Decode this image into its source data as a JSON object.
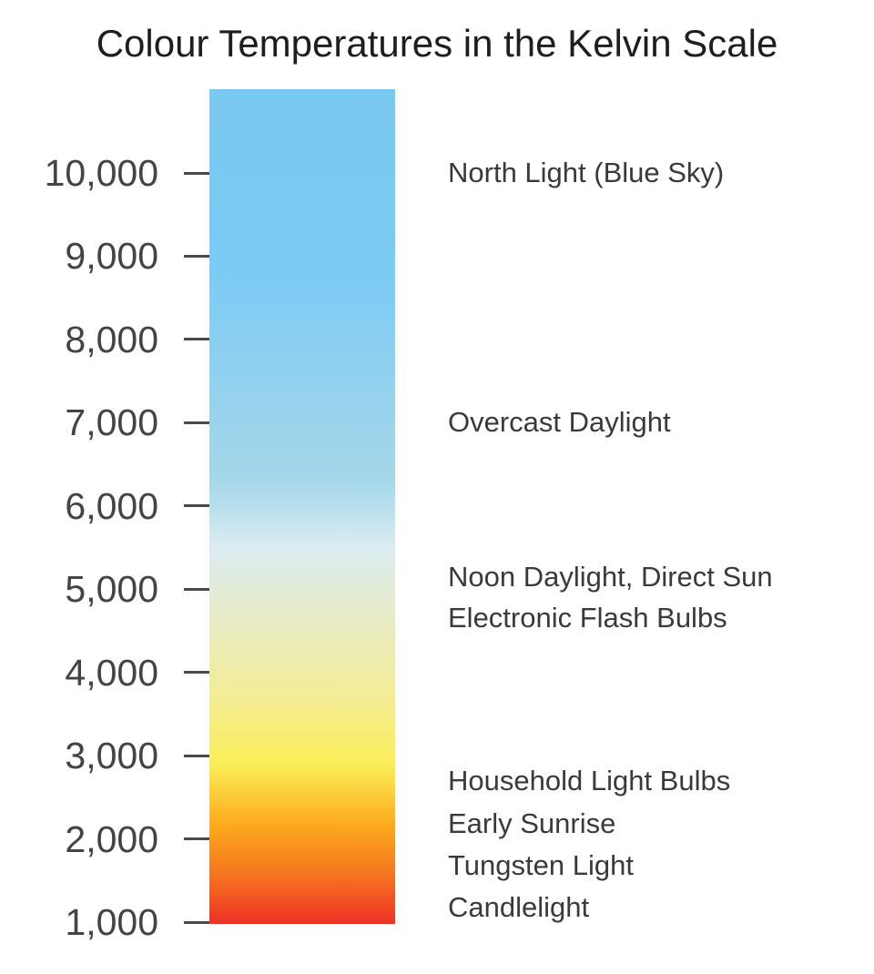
{
  "title": "Colour Temperatures in the Kelvin Scale",
  "scale": {
    "min": 1000,
    "max": 10000,
    "ticks": [
      {
        "value": 10000,
        "label": "10,000"
      },
      {
        "value": 9000,
        "label": "9,000"
      },
      {
        "value": 8000,
        "label": "8,000"
      },
      {
        "value": 7000,
        "label": "7,000"
      },
      {
        "value": 6000,
        "label": "6,000"
      },
      {
        "value": 5000,
        "label": "5,000"
      },
      {
        "value": 4000,
        "label": "4,000"
      },
      {
        "value": 3000,
        "label": "3,000"
      },
      {
        "value": 2000,
        "label": "2,000"
      },
      {
        "value": 1000,
        "label": "1,000"
      }
    ],
    "gradient_colors": {
      "top": "#79c8ef",
      "upper": "#7ccbf5",
      "middle": "#dcecf2",
      "lower": "#fbee58",
      "orange": "#fcab1d",
      "bottom": "#ee3126"
    }
  },
  "descriptions": [
    {
      "text": "North Light (Blue Sky)",
      "kelvin": 10000
    },
    {
      "text": "Overcast Daylight",
      "kelvin": 7000
    },
    {
      "text": "Noon Daylight, Direct Sun",
      "kelvin": 5150
    },
    {
      "text": "Electronic Flash Bulbs",
      "kelvin": 4650
    },
    {
      "text": "Household Light Bulbs",
      "kelvin": 2700
    },
    {
      "text": "Early Sunrise",
      "kelvin": 2180
    },
    {
      "text": "Tungsten Light",
      "kelvin": 1680
    },
    {
      "text": "Candlelight",
      "kelvin": 1180
    }
  ]
}
